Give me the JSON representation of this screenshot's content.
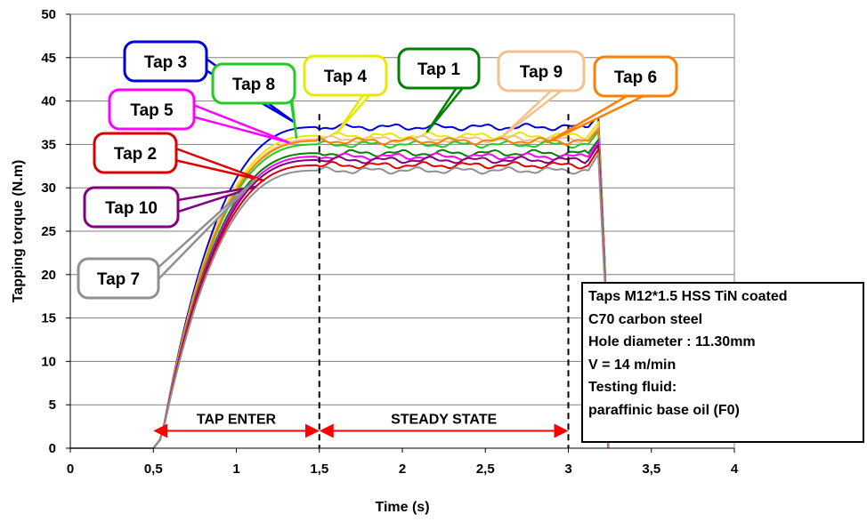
{
  "chart_data": {
    "type": "line",
    "xlabel": "Time (s)",
    "ylabel": "Tapping torque (N.m)",
    "xlim": [
      0,
      4
    ],
    "ylim": [
      0,
      50
    ],
    "x_ticks": [
      "0",
      "0,5",
      "1",
      "1,5",
      "2",
      "2,5",
      "3",
      "3,5",
      "4"
    ],
    "y_ticks": [
      "0",
      "5",
      "10",
      "15",
      "20",
      "25",
      "30",
      "35",
      "40",
      "45",
      "50"
    ],
    "grid": "horizontal",
    "series": [
      {
        "name": "Tap 3",
        "color": "#0000dd",
        "steady": 37.0,
        "peak": 38.8
      },
      {
        "name": "Tap 4",
        "color": "#e8e800",
        "steady": 36.0,
        "peak": 38.0
      },
      {
        "name": "Tap 9",
        "color": "#f5c08a",
        "steady": 35.6,
        "peak": 37.6
      },
      {
        "name": "Tap 8",
        "color": "#22cc22",
        "steady": 35.0,
        "peak": 37.0
      },
      {
        "name": "Tap 6",
        "color": "#ff7f00",
        "steady": 35.4,
        "peak": 37.2
      },
      {
        "name": "Tap 1",
        "color": "#008000",
        "steady": 34.0,
        "peak": 36.0
      },
      {
        "name": "Tap 5",
        "color": "#ff00ff",
        "steady": 33.6,
        "peak": 35.8
      },
      {
        "name": "Tap 10",
        "color": "#800080",
        "steady": 33.2,
        "peak": 35.5
      },
      {
        "name": "Tap 2",
        "color": "#dd0000",
        "steady": 32.6,
        "peak": 35.0
      },
      {
        "name": "Tap 7",
        "color": "#909090",
        "steady": 32.0,
        "peak": 34.5
      }
    ],
    "phase_markers": [
      1.5,
      3.0
    ],
    "phases": [
      {
        "label": "TAP ENTER",
        "from": 0.5,
        "to": 1.5
      },
      {
        "label": "STEADY STATE",
        "from": 1.5,
        "to": 3.0
      }
    ]
  },
  "callouts": [
    {
      "label": "Tap 3",
      "color": "#0000dd"
    },
    {
      "label": "Tap 8",
      "color": "#22cc22"
    },
    {
      "label": "Tap 4",
      "color": "#e8e800"
    },
    {
      "label": "Tap 1",
      "color": "#008000"
    },
    {
      "label": "Tap 9",
      "color": "#f5c08a"
    },
    {
      "label": "Tap 6",
      "color": "#ff7f00"
    },
    {
      "label": "Tap 5",
      "color": "#ff00ff"
    },
    {
      "label": "Tap 2",
      "color": "#dd0000"
    },
    {
      "label": "Tap 10",
      "color": "#800080"
    },
    {
      "label": "Tap 7",
      "color": "#909090"
    }
  ],
  "info_box": {
    "lines": [
      "Taps M12*1.5 HSS TiN coated",
      "C70 carbon steel",
      "Hole diameter : 11.30mm",
      "V = 14 m/min",
      "Testing fluid:",
      "paraffinic base oil (F0)"
    ]
  }
}
